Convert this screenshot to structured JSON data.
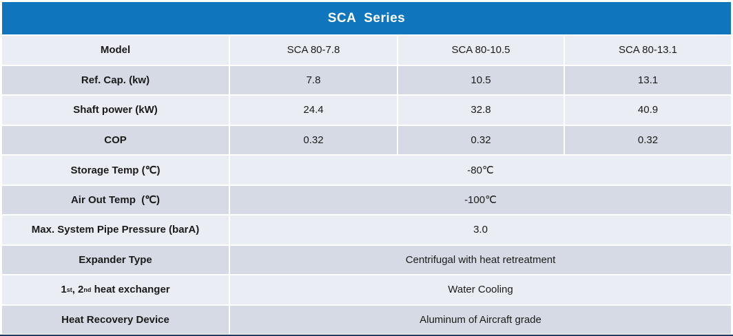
{
  "table": {
    "title": "SCA  Series",
    "rows": [
      {
        "label": "Model",
        "values": [
          "SCA 80-7.8",
          "SCA 80-10.5",
          "SCA 80-13.1"
        ]
      },
      {
        "label": "Ref. Cap. (kw)",
        "values": [
          "7.8",
          "10.5",
          "13.1"
        ]
      },
      {
        "label": "Shaft power (kW)",
        "values": [
          "24.4",
          "32.8",
          "40.9"
        ]
      },
      {
        "label": "COP",
        "values": [
          "0.32",
          "0.32",
          "0.32"
        ]
      },
      {
        "label": "Storage Temp (℃)",
        "merged_value": "-80℃"
      },
      {
        "label": "Air Out Temp  (℃)",
        "merged_value": "-100℃"
      },
      {
        "label": "Max. System Pipe Pressure (barA)",
        "merged_value": "3.0"
      },
      {
        "label": "Expander Type",
        "merged_value": "Centrifugal with heat retreatment"
      },
      {
        "label_parts": {
          "base1": "1",
          "sup1": "st",
          "base2": ", 2",
          "sup2": "nd",
          "base3": " heat exchanger"
        },
        "merged_value": "Water Cooling"
      },
      {
        "label": "Heat Recovery Device",
        "merged_value": "Aluminum of Aircraft grade"
      }
    ],
    "colors": {
      "header_bg": "#0F76BE",
      "row_light": "#EAEDF4",
      "row_dark": "#D5DAE4",
      "grid_line": "#FFFFFF",
      "bottom_border": "#1F3864",
      "text": "#1A1A1A",
      "title_text": "#FFFFFF"
    }
  }
}
